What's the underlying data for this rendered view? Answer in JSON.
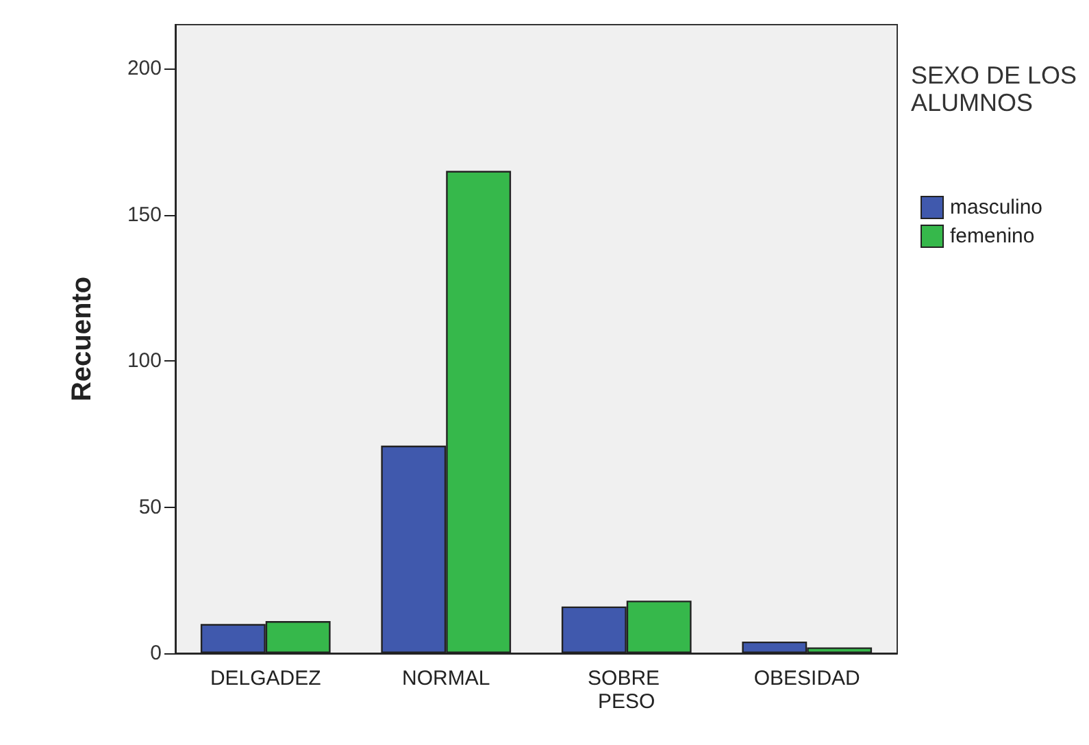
{
  "chart_data": {
    "type": "bar",
    "ylabel": "Recuento",
    "legend_title": "SEXO DE LOS ALUMNOS",
    "categories": [
      "DELGADEZ",
      "NORMAL",
      "SOBRE PESO",
      "OBESIDAD"
    ],
    "series": [
      {
        "name": "masculino",
        "color": "#4059ad",
        "values": [
          10,
          71,
          16,
          4
        ]
      },
      {
        "name": "femenino",
        "color": "#36b84b",
        "values": [
          11,
          165,
          18,
          2
        ]
      }
    ],
    "ylim": [
      0,
      215
    ],
    "yticks": [
      0,
      50,
      100,
      150,
      200
    ],
    "grid": false,
    "legend": "right"
  }
}
